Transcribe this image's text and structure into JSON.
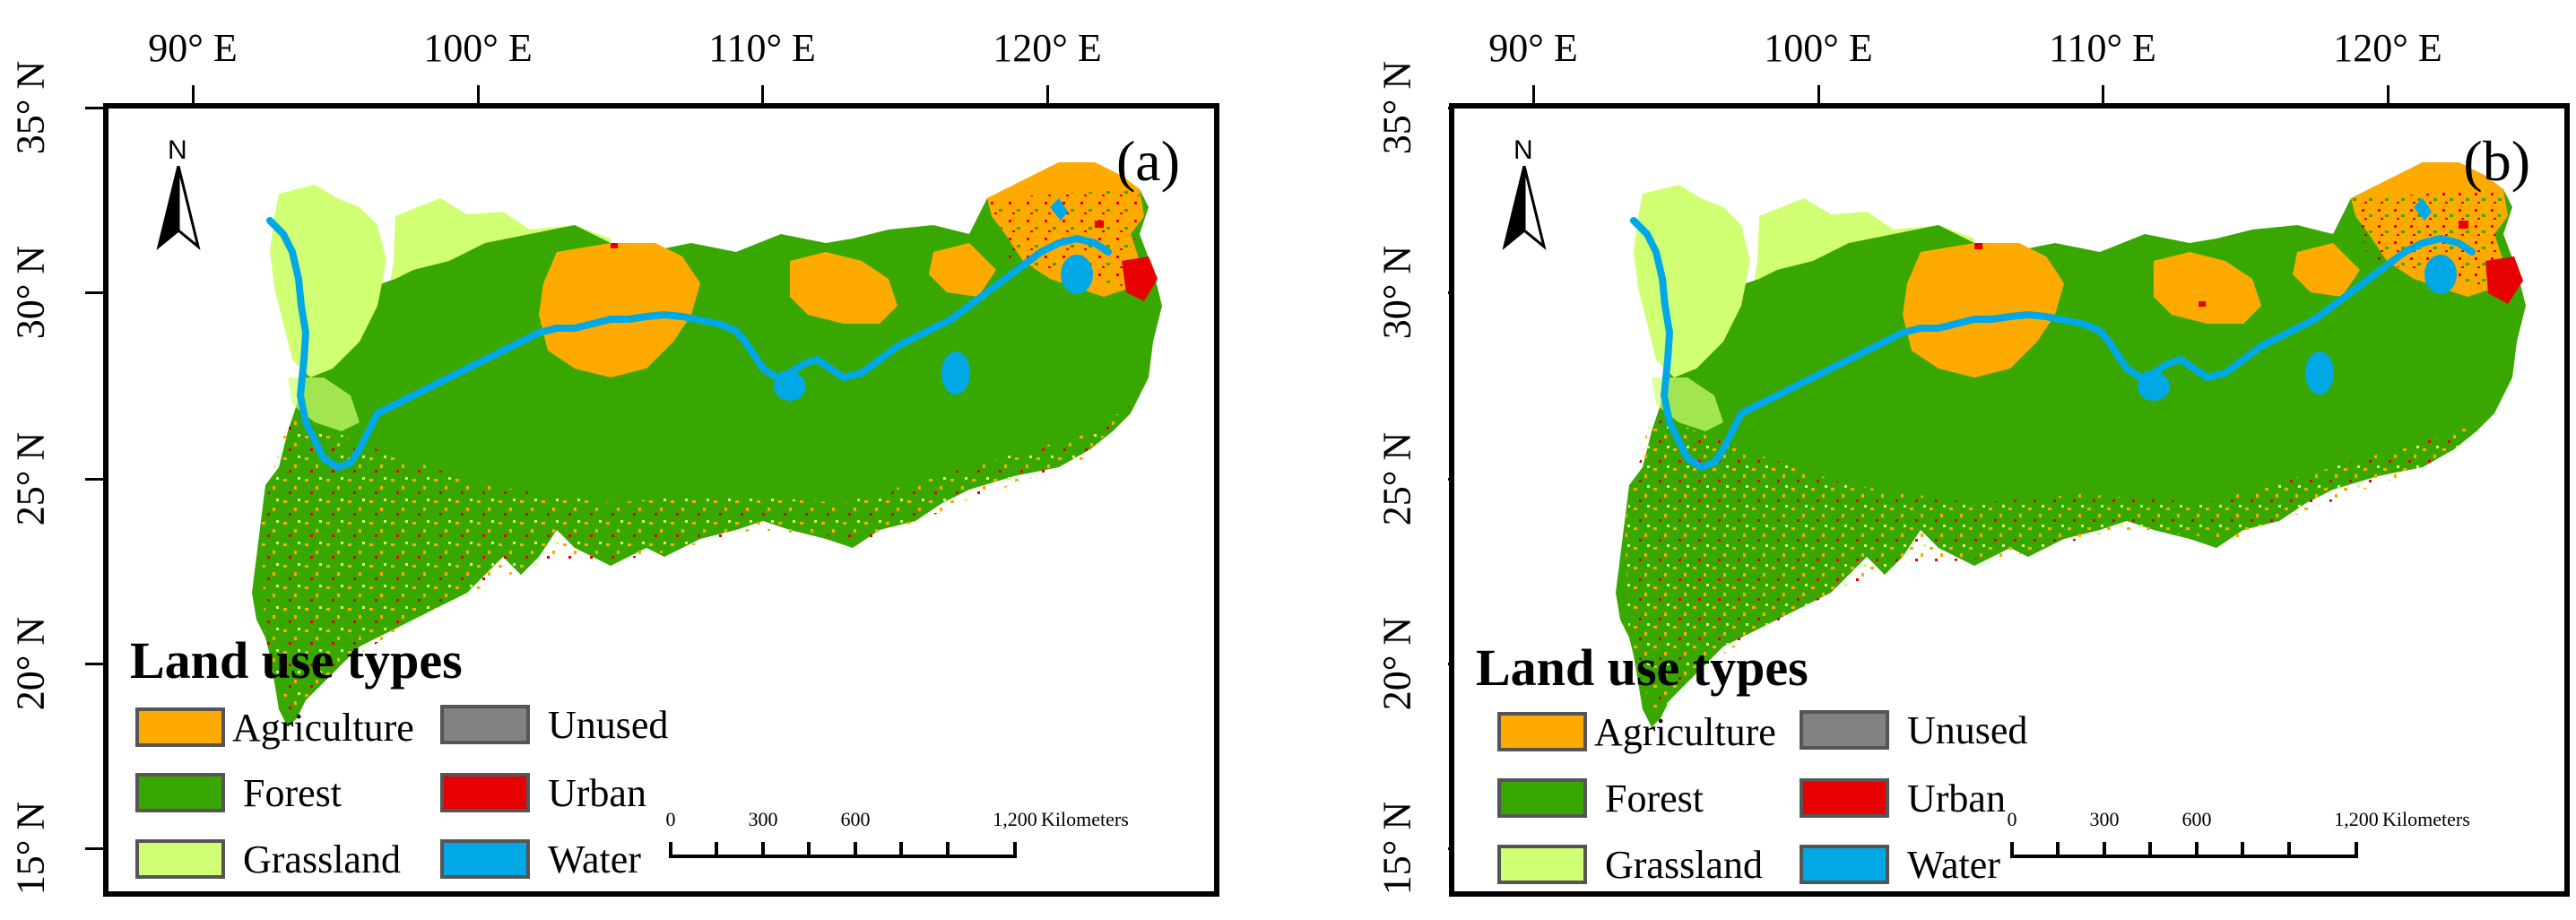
{
  "panels": [
    {
      "label": "(a)",
      "lon_labels": [
        "90° E",
        "100° E",
        "110° E",
        "120° E"
      ],
      "lat_labels": [
        "35° N",
        "30° N",
        "25° N",
        "20° N",
        "15° N"
      ],
      "north_letter": "N",
      "legend": {
        "title": "Land use types",
        "items": [
          {
            "name": "Agriculture",
            "color": "#ffaa00"
          },
          {
            "name": "Unused",
            "color": "#828282"
          },
          {
            "name": "Forest",
            "color": "#38a800"
          },
          {
            "name": "Urban",
            "color": "#e60000"
          },
          {
            "name": "Grassland",
            "color": "#d1ff73"
          },
          {
            "name": "Water",
            "color": "#00a9e6"
          }
        ]
      },
      "scalebar": {
        "ticks": [
          "0",
          "300",
          "600",
          "1,200"
        ],
        "unit": "Kilometers"
      }
    },
    {
      "label": "(b)",
      "lon_labels": [
        "90° E",
        "100° E",
        "110° E",
        "120° E"
      ],
      "lat_labels": [
        "35° N",
        "30° N",
        "25° N",
        "20° N",
        "15° N"
      ],
      "north_letter": "N",
      "legend": {
        "title": "Land use types",
        "items": [
          {
            "name": "Agriculture",
            "color": "#ffaa00"
          },
          {
            "name": "Unused",
            "color": "#828282"
          },
          {
            "name": "Forest",
            "color": "#38a800"
          },
          {
            "name": "Urban",
            "color": "#e60000"
          },
          {
            "name": "Grassland",
            "color": "#d1ff73"
          },
          {
            "name": "Water",
            "color": "#00a9e6"
          }
        ]
      },
      "scalebar": {
        "ticks": [
          "0",
          "300",
          "600",
          "1,200"
        ],
        "unit": "Kilometers"
      }
    }
  ]
}
